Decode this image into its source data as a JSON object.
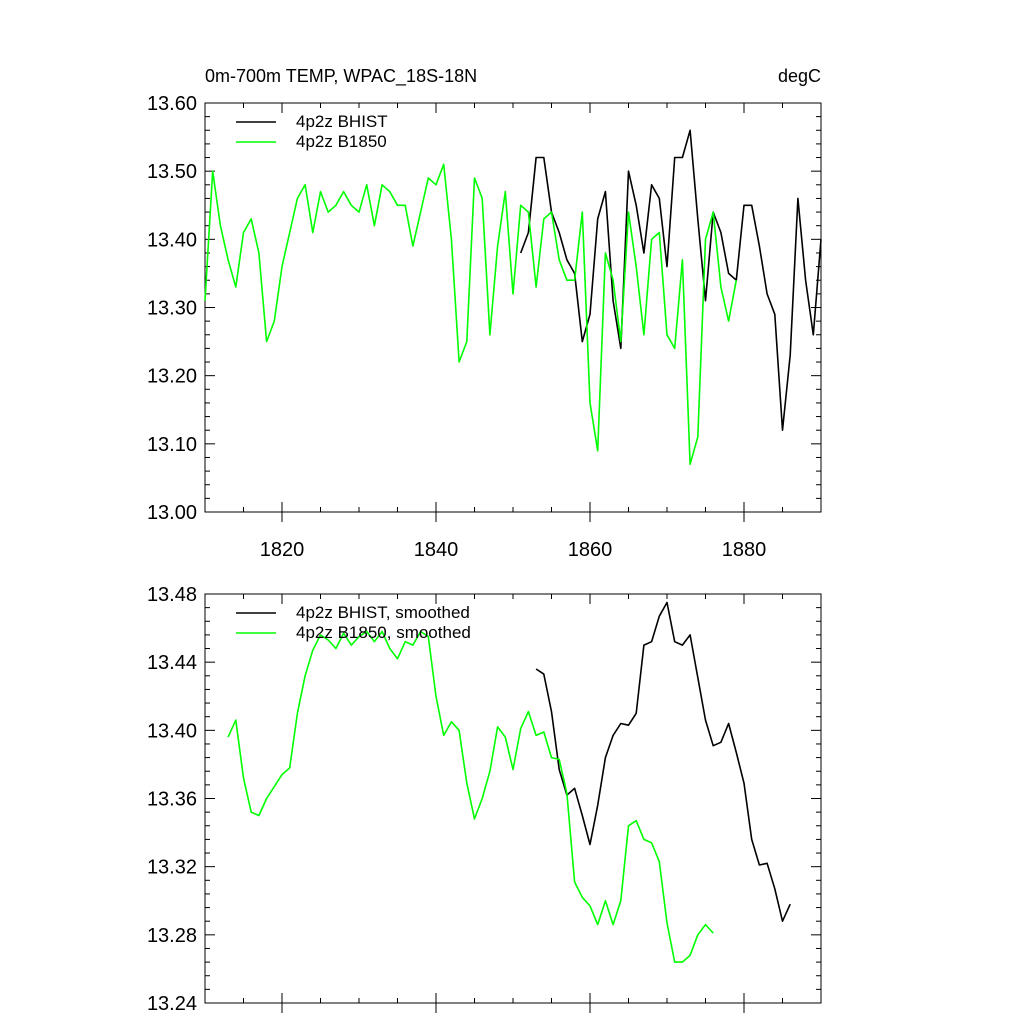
{
  "title_left": "0m-700m TEMP, WPAC_18S-18N",
  "title_right": "degC",
  "chart_data": [
    {
      "type": "line",
      "xlim": [
        1810,
        1890
      ],
      "ylim": [
        13.0,
        13.6
      ],
      "yticks": [
        13.0,
        13.1,
        13.2,
        13.3,
        13.4,
        13.5,
        13.6
      ],
      "ytick_labels": [
        "13.00",
        "13.10",
        "13.20",
        "13.30",
        "13.40",
        "13.50",
        "13.60"
      ],
      "xticks": [
        1820,
        1840,
        1860,
        1880
      ],
      "xtick_labels": [
        "1820",
        "1840",
        "1860",
        "1880"
      ],
      "legend_position": "top-left",
      "series": [
        {
          "name": "4p2z BHIST",
          "color": "#000000",
          "x": [
            1851,
            1852,
            1853,
            1854,
            1855,
            1856,
            1857,
            1858,
            1859,
            1860,
            1861,
            1862,
            1863,
            1864,
            1865,
            1866,
            1867,
            1868,
            1869,
            1870,
            1871,
            1872,
            1873,
            1874,
            1875,
            1876,
            1877,
            1878,
            1879,
            1880,
            1881,
            1882,
            1883,
            1884,
            1885,
            1886,
            1887,
            1888,
            1889,
            1890
          ],
          "y": [
            13.38,
            13.41,
            13.52,
            13.52,
            13.44,
            13.41,
            13.37,
            13.35,
            13.25,
            13.29,
            13.43,
            13.47,
            13.31,
            13.24,
            13.5,
            13.45,
            13.38,
            13.48,
            13.46,
            13.36,
            13.52,
            13.52,
            13.56,
            13.43,
            13.31,
            13.44,
            13.41,
            13.35,
            13.34,
            13.45,
            13.45,
            13.39,
            13.32,
            13.29,
            13.12,
            13.23,
            13.46,
            13.34,
            13.26,
            13.4
          ]
        },
        {
          "name": "4p2z B1850",
          "color": "#00ff00",
          "x": [
            1810,
            1811,
            1812,
            1813,
            1814,
            1815,
            1816,
            1817,
            1818,
            1819,
            1820,
            1821,
            1822,
            1823,
            1824,
            1825,
            1826,
            1827,
            1828,
            1829,
            1830,
            1831,
            1832,
            1833,
            1834,
            1835,
            1836,
            1837,
            1838,
            1839,
            1840,
            1841,
            1842,
            1843,
            1844,
            1845,
            1846,
            1847,
            1848,
            1849,
            1850,
            1851,
            1852,
            1853,
            1854,
            1855,
            1856,
            1857,
            1858,
            1859,
            1860,
            1861,
            1862,
            1863,
            1864,
            1865,
            1866,
            1867,
            1868,
            1869,
            1870,
            1871,
            1872,
            1873,
            1874,
            1875,
            1876,
            1877,
            1878,
            1879
          ],
          "y": [
            13.31,
            13.5,
            13.42,
            13.37,
            13.33,
            13.41,
            13.43,
            13.38,
            13.25,
            13.28,
            13.36,
            13.41,
            13.46,
            13.48,
            13.41,
            13.47,
            13.44,
            13.45,
            13.47,
            13.45,
            13.44,
            13.48,
            13.42,
            13.48,
            13.47,
            13.45,
            13.45,
            13.39,
            13.44,
            13.49,
            13.48,
            13.51,
            13.4,
            13.22,
            13.25,
            13.49,
            13.46,
            13.26,
            13.39,
            13.47,
            13.32,
            13.45,
            13.44,
            13.33,
            13.43,
            13.44,
            13.37,
            13.34,
            13.34,
            13.44,
            13.16,
            13.09,
            13.38,
            13.34,
            13.25,
            13.44,
            13.36,
            13.26,
            13.4,
            13.41,
            13.26,
            13.24,
            13.37,
            13.07,
            13.11,
            13.4,
            13.44,
            13.33,
            13.28,
            13.34
          ]
        }
      ]
    },
    {
      "type": "line",
      "xlim": [
        1810,
        1890
      ],
      "ylim": [
        13.24,
        13.48
      ],
      "yticks": [
        13.24,
        13.28,
        13.32,
        13.36,
        13.4,
        13.44,
        13.48
      ],
      "ytick_labels": [
        "13.24",
        "13.28",
        "13.32",
        "13.36",
        "13.40",
        "13.44",
        "13.48"
      ],
      "xticks": [
        1820,
        1840,
        1860,
        1880
      ],
      "legend_position": "top-left",
      "series": [
        {
          "name": "4p2z BHIST, smoothed",
          "color": "#000000",
          "x": [
            1853,
            1854,
            1855,
            1856,
            1857,
            1858,
            1859,
            1860,
            1861,
            1862,
            1863,
            1864,
            1865,
            1866,
            1867,
            1868,
            1869,
            1870,
            1871,
            1872,
            1873,
            1874,
            1875,
            1876,
            1877,
            1878,
            1879,
            1880,
            1881,
            1882,
            1883,
            1884,
            1885,
            1886
          ],
          "y": [
            13.436,
            13.433,
            13.411,
            13.377,
            13.362,
            13.366,
            13.35,
            13.333,
            13.356,
            13.384,
            13.397,
            13.404,
            13.403,
            13.41,
            13.45,
            13.452,
            13.467,
            13.475,
            13.452,
            13.45,
            13.456,
            13.431,
            13.406,
            13.391,
            13.393,
            13.404,
            13.387,
            13.369,
            13.336,
            13.321,
            13.322,
            13.307,
            13.288,
            13.298
          ]
        },
        {
          "name": "4p2z B1850, smoothed",
          "color": "#00ff00",
          "x": [
            1813,
            1814,
            1815,
            1816,
            1817,
            1818,
            1819,
            1820,
            1821,
            1822,
            1823,
            1824,
            1825,
            1826,
            1827,
            1828,
            1829,
            1830,
            1831,
            1832,
            1833,
            1834,
            1835,
            1836,
            1837,
            1838,
            1839,
            1840,
            1841,
            1842,
            1843,
            1844,
            1845,
            1846,
            1847,
            1848,
            1849,
            1850,
            1851,
            1852,
            1853,
            1854,
            1855,
            1856,
            1857,
            1858,
            1859,
            1860,
            1861,
            1862,
            1863,
            1864,
            1865,
            1866,
            1867,
            1868,
            1869,
            1870,
            1871,
            1872,
            1873,
            1874,
            1875,
            1876
          ],
          "y": [
            13.396,
            13.406,
            13.372,
            13.352,
            13.35,
            13.36,
            13.367,
            13.374,
            13.378,
            13.41,
            13.432,
            13.447,
            13.456,
            13.453,
            13.448,
            13.457,
            13.45,
            13.455,
            13.458,
            13.452,
            13.458,
            13.448,
            13.442,
            13.452,
            13.45,
            13.458,
            13.455,
            13.42,
            13.397,
            13.405,
            13.4,
            13.369,
            13.348,
            13.36,
            13.376,
            13.402,
            13.396,
            13.377,
            13.401,
            13.411,
            13.397,
            13.399,
            13.384,
            13.383,
            13.363,
            13.311,
            13.302,
            13.297,
            13.286,
            13.3,
            13.286,
            13.3,
            13.344,
            13.347,
            13.336,
            13.334,
            13.323,
            13.287,
            13.264,
            13.264,
            13.268,
            13.28,
            13.286,
            13.281
          ]
        }
      ]
    }
  ]
}
